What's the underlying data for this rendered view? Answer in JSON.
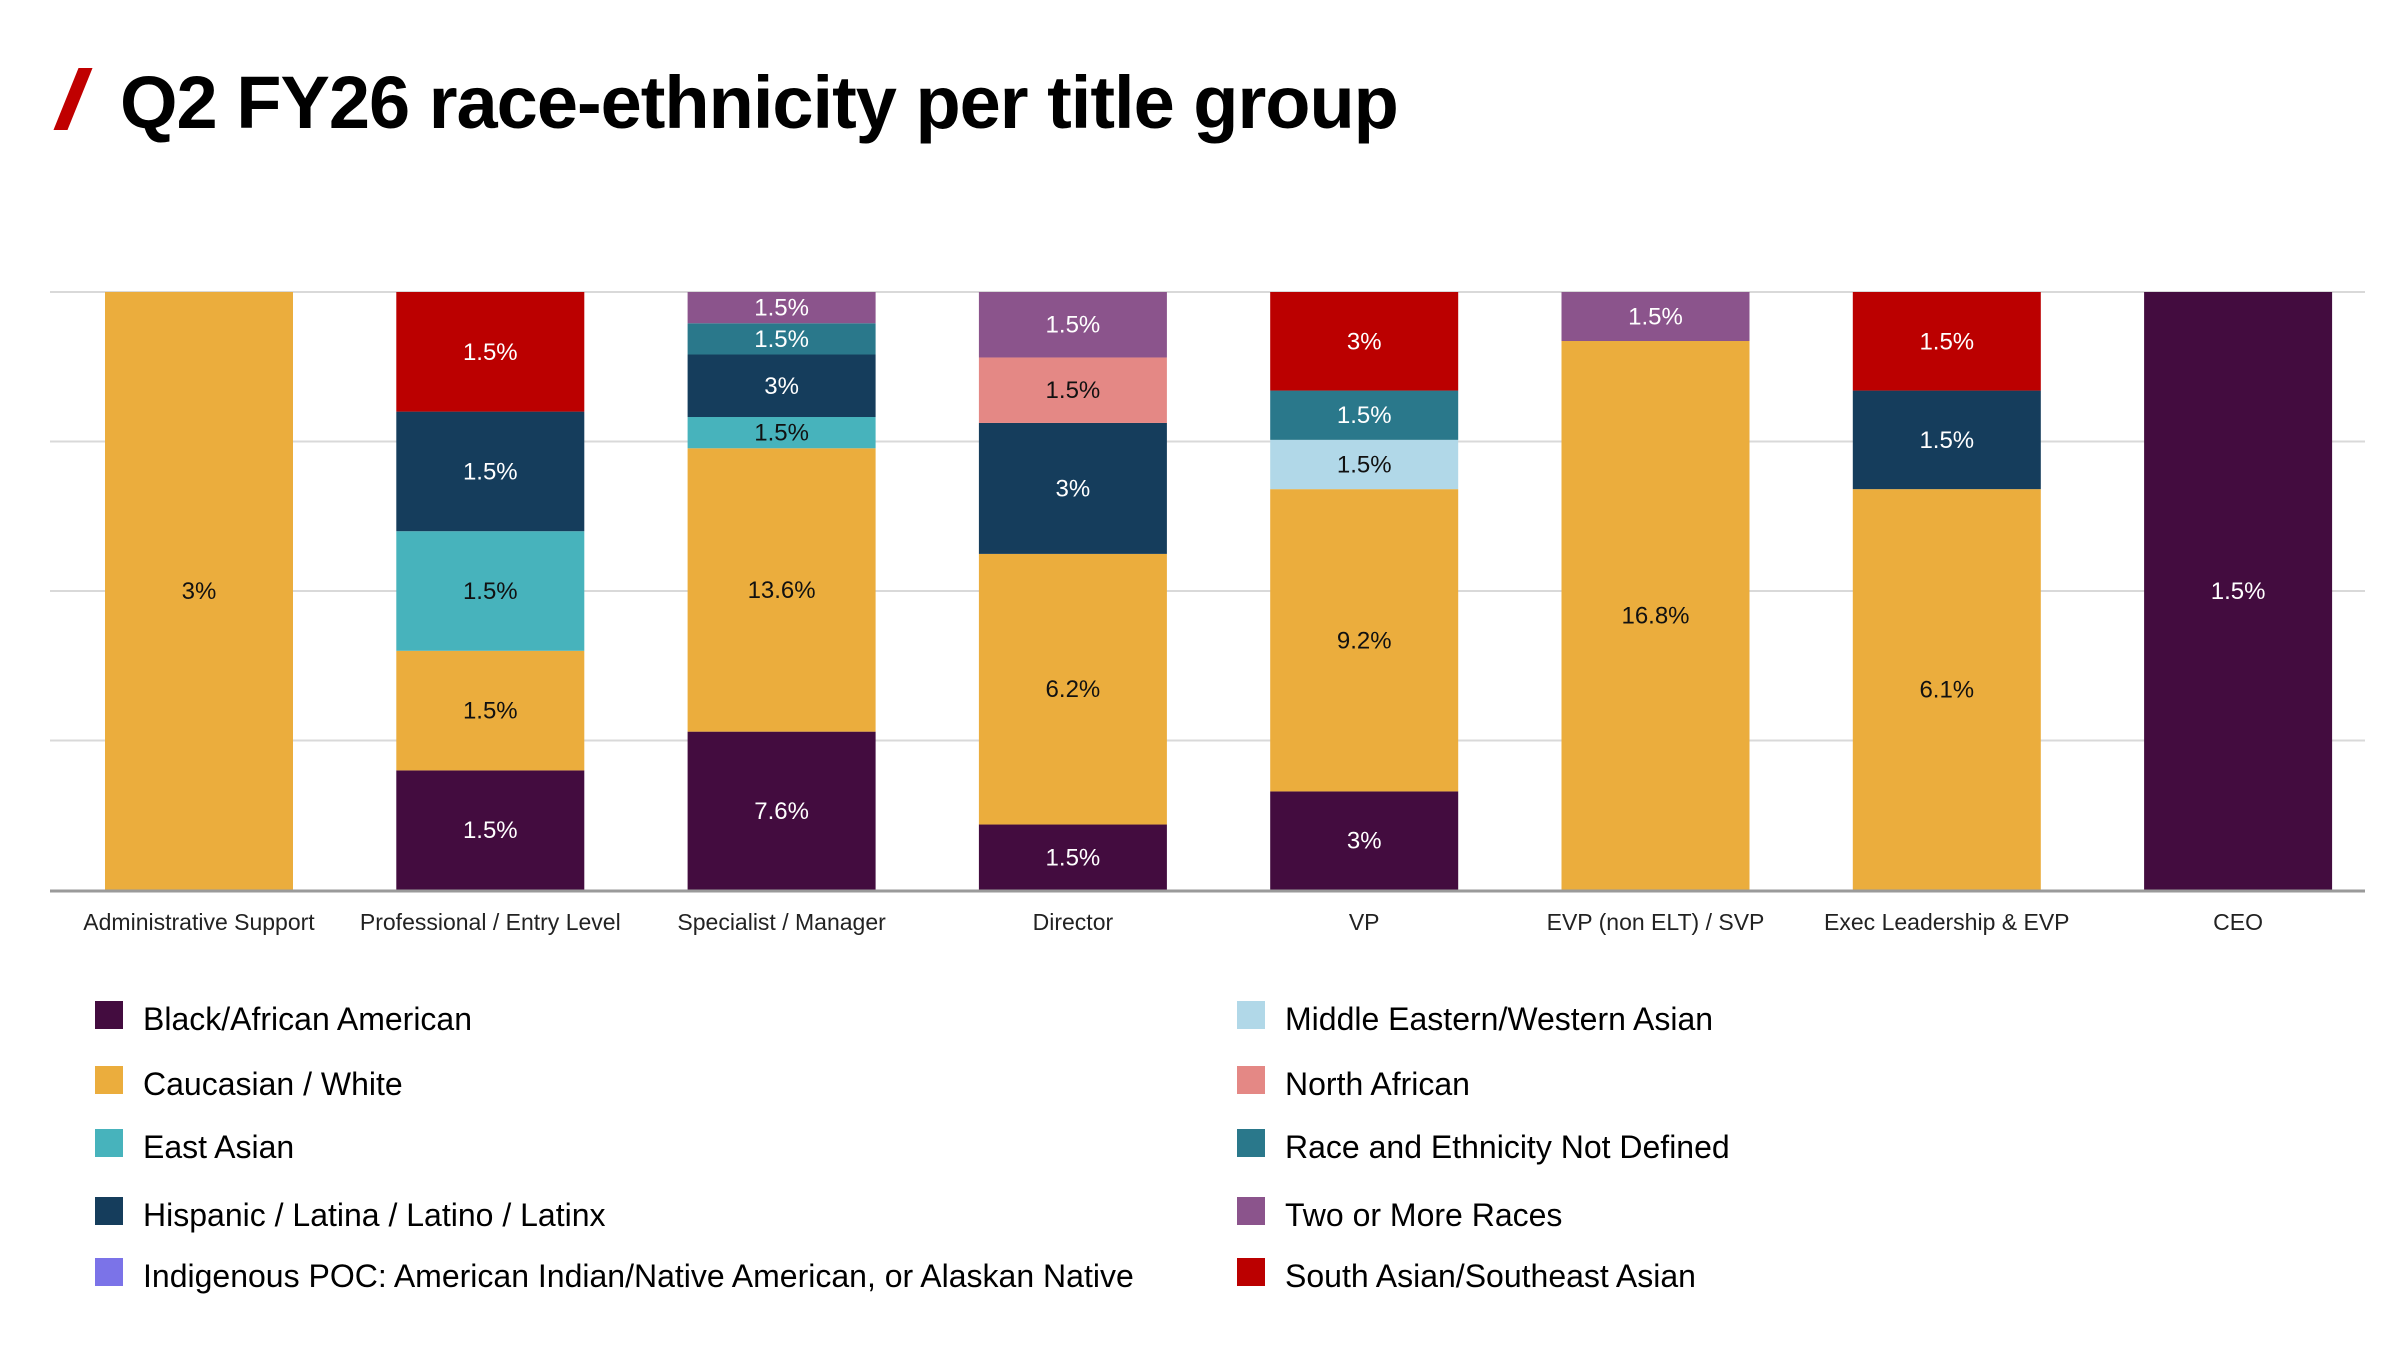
{
  "header": {
    "title": "Q2 FY26 race-ethnicity per title group",
    "accent_color": "#c00000"
  },
  "chart_data": {
    "type": "bar",
    "stacked": true,
    "normalized": true,
    "title": "Q2 FY26 race-ethnicity per title group",
    "xlabel": "",
    "ylabel": "",
    "grid": true,
    "legend_position": "bottom",
    "categories": [
      "Administrative Support",
      "Professional / Entry Level",
      "Specialist / Manager",
      "Director",
      "VP",
      "EVP (non ELT) / SVP",
      "Exec Leadership & EVP",
      "CEO"
    ],
    "series": [
      {
        "name": "Black/African American",
        "color": "#430c3f",
        "label_color": "#ffffff",
        "values": [
          null,
          1.5,
          7.6,
          1.5,
          3,
          null,
          null,
          1.5
        ],
        "labels": [
          null,
          "1.5%",
          "7.6%",
          "1.5%",
          "3%",
          null,
          null,
          "1.5%"
        ]
      },
      {
        "name": "Caucasian / White",
        "color": "#ebad3d",
        "label_color": "#111111",
        "values": [
          3,
          1.5,
          13.6,
          6.2,
          9.2,
          16.8,
          6.1,
          null
        ],
        "labels": [
          "3%",
          "1.5%",
          "13.6%",
          "6.2%",
          "9.2%",
          "16.8%",
          "6.1%",
          null
        ]
      },
      {
        "name": "East Asian",
        "color": "#47b3bc",
        "label_color": "#111111",
        "values": [
          null,
          1.5,
          1.5,
          null,
          null,
          null,
          null,
          null
        ],
        "labels": [
          null,
          "1.5%",
          "1.5%",
          null,
          null,
          null,
          null,
          null
        ]
      },
      {
        "name": "Hispanic / Latina / Latino / Latinx",
        "color": "#153d5c",
        "label_color": "#ffffff",
        "values": [
          null,
          1.5,
          3,
          3,
          null,
          null,
          1.5,
          null
        ],
        "labels": [
          null,
          "1.5%",
          "3%",
          "3%",
          null,
          null,
          "1.5%",
          null
        ]
      },
      {
        "name": "Indigenous POC: American Indian/Native American, or Alaskan Native",
        "color": "#7b73e8",
        "label_color": "#ffffff",
        "values": [
          null,
          null,
          null,
          null,
          null,
          null,
          null,
          null
        ],
        "labels": [
          null,
          null,
          null,
          null,
          null,
          null,
          null,
          null
        ]
      },
      {
        "name": "Middle Eastern/Western Asian",
        "color": "#b1d8e8",
        "label_color": "#111111",
        "values": [
          null,
          null,
          null,
          null,
          1.5,
          null,
          null,
          null
        ],
        "labels": [
          null,
          null,
          null,
          null,
          "1.5%",
          null,
          null,
          null
        ]
      },
      {
        "name": "North African",
        "color": "#e48885",
        "label_color": "#111111",
        "values": [
          null,
          null,
          null,
          1.5,
          null,
          null,
          null,
          null
        ],
        "labels": [
          null,
          null,
          null,
          "1.5%",
          null,
          null,
          null,
          null
        ]
      },
      {
        "name": "Race and Ethnicity Not Defined",
        "color": "#2a788b",
        "label_color": "#ffffff",
        "values": [
          null,
          null,
          1.5,
          null,
          1.5,
          null,
          null,
          null
        ],
        "labels": [
          null,
          null,
          "1.5%",
          null,
          "1.5%",
          null,
          null,
          null
        ]
      },
      {
        "name": "Two or More Races",
        "color": "#8b548c",
        "label_color": "#ffffff",
        "values": [
          null,
          null,
          1.5,
          1.5,
          null,
          1.5,
          null,
          null
        ],
        "labels": [
          null,
          null,
          "1.5%",
          "1.5%",
          null,
          "1.5%",
          null,
          null
        ]
      },
      {
        "name": "South Asian/Southeast Asian",
        "color": "#bb0000",
        "label_color": "#ffffff",
        "values": [
          null,
          1.5,
          null,
          null,
          3,
          null,
          1.5,
          null
        ],
        "labels": [
          null,
          "1.5%",
          null,
          null,
          "3%",
          null,
          "1.5%",
          null
        ]
      }
    ]
  }
}
